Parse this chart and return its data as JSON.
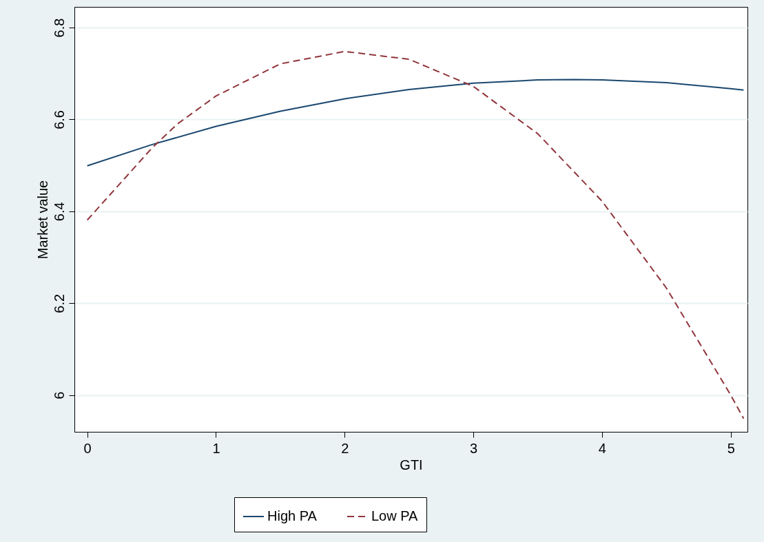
{
  "chart_data": {
    "type": "line",
    "xlabel": "GTI",
    "ylabel": "Market value",
    "xlim": [
      -0.1,
      5.13
    ],
    "ylim": [
      5.92,
      6.845
    ],
    "xticks": [
      0,
      1,
      2,
      3,
      4,
      5
    ],
    "yticks": [
      6,
      6.2,
      6.4,
      6.6,
      6.8
    ],
    "grid": "y",
    "legend": "bottom",
    "series": [
      {
        "name": "High PA",
        "color": "#1a476f",
        "line_style": "solid",
        "x": [
          0,
          0.5,
          1,
          1.5,
          2,
          2.5,
          3,
          3.5,
          3.78,
          4,
          4.5,
          5,
          5.1
        ],
        "values": [
          6.499,
          6.545,
          6.585,
          6.618,
          6.645,
          6.665,
          6.679,
          6.686,
          6.687,
          6.686,
          6.68,
          6.667,
          6.664
        ]
      },
      {
        "name": "Low PA",
        "color": "#90353b",
        "line_style": "dashed",
        "x": [
          0,
          0.5,
          0.7,
          1,
          1.5,
          2,
          2.5,
          3,
          3.5,
          4,
          4.5,
          5,
          5.1
        ],
        "values": [
          6.381,
          6.537,
          6.59,
          6.651,
          6.721,
          6.748,
          6.731,
          6.672,
          6.569,
          6.422,
          6.233,
          6.0,
          5.949
        ]
      }
    ]
  }
}
